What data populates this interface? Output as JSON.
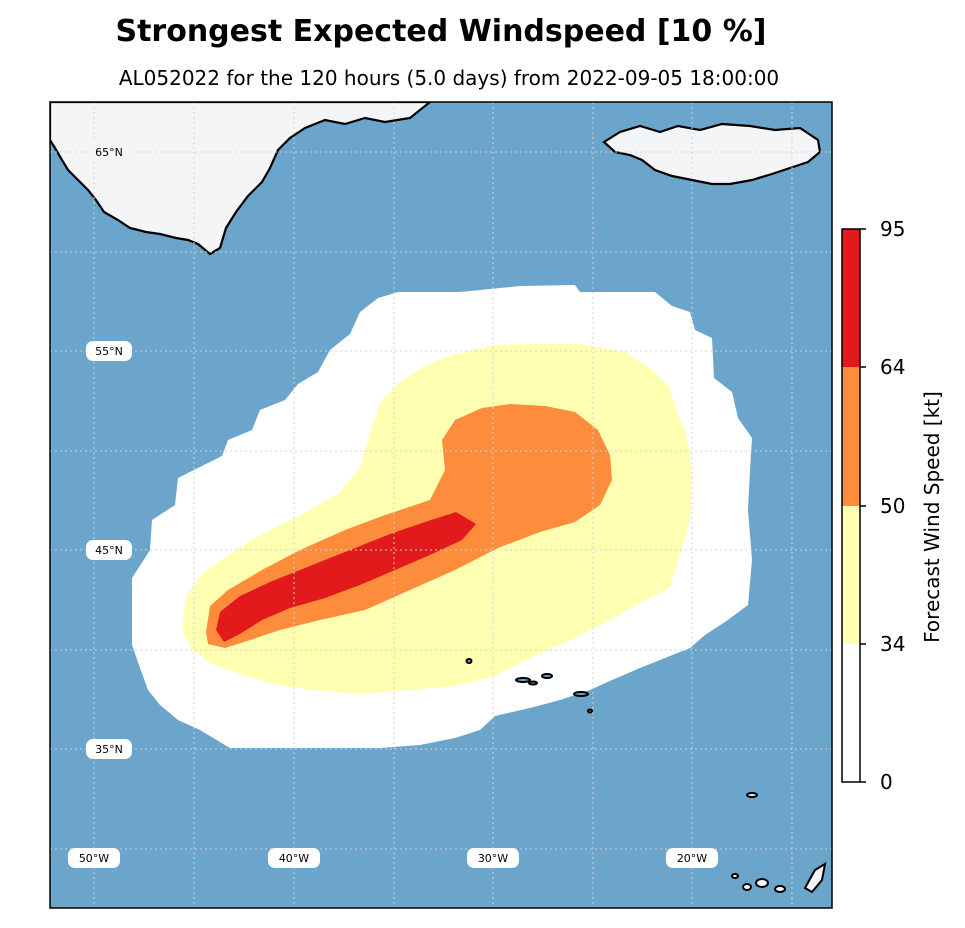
{
  "title": "Strongest Expected Windspeed [10 %]",
  "subtitle": "AL052022 for the 120 hours (5.0 days) from 2022-09-05 18:00:00",
  "map": {
    "ocean_color": "#6ba5cc",
    "land_color": "#f4f5f7",
    "lat_labels": [
      "65°N",
      "55°N",
      "45°N",
      "35°N"
    ],
    "lon_labels": [
      "50°W",
      "40°W",
      "30°W",
      "20°W"
    ]
  },
  "wind_bands": [
    {
      "name": "34 kt",
      "color": "#ffffff"
    },
    {
      "name": "50 kt",
      "color": "#ffffb2"
    },
    {
      "name": "64 kt",
      "color": "#fd8d3c"
    },
    {
      "name": "95 kt",
      "color": "#e31a1c"
    }
  ],
  "colorbar": {
    "label": "Forecast Wind Speed [kt]",
    "ticks": [
      "95",
      "64",
      "50",
      "34",
      "0"
    ],
    "colors": [
      "#e31a1c",
      "#fd8d3c",
      "#ffffb2",
      "#ffffff"
    ]
  }
}
